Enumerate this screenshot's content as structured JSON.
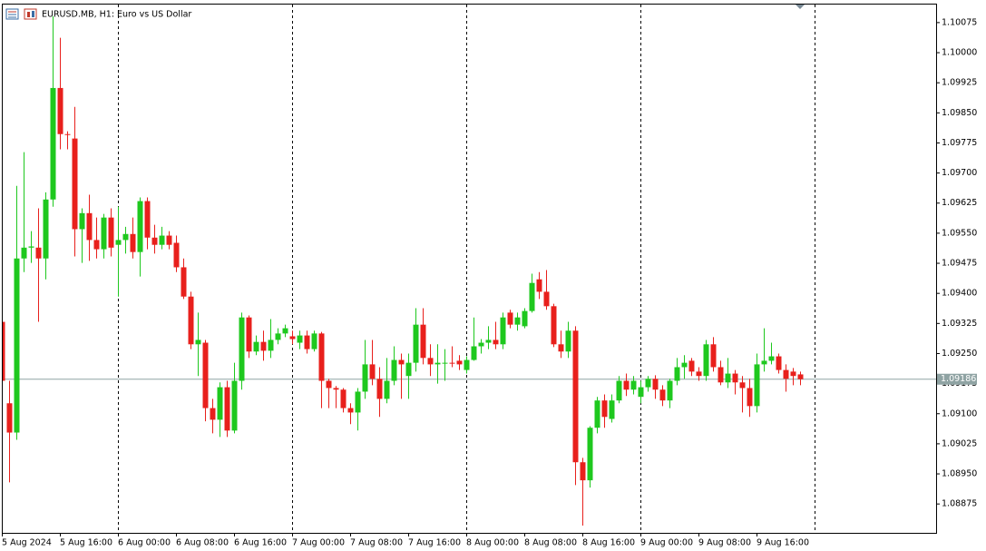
{
  "chart_data": {
    "type": "candlestick",
    "title": "EURUSD.MB, H1: Euro vs US Dollar",
    "categories": [
      "5 Aug 2024",
      null,
      null,
      null,
      null,
      null,
      null,
      null,
      "5 Aug 16:00",
      null,
      null,
      null,
      null,
      null,
      null,
      null,
      "6 Aug 00:00",
      null,
      null,
      null,
      null,
      null,
      null,
      null,
      "6 Aug 08:00",
      null,
      null,
      null,
      null,
      null,
      null,
      null,
      "6 Aug 16:00",
      null,
      null,
      null,
      null,
      null,
      null,
      null,
      "7 Aug 00:00",
      null,
      null,
      null,
      null,
      null,
      null,
      null,
      "7 Aug 08:00",
      null,
      null,
      null,
      null,
      null,
      null,
      null,
      "7 Aug 16:00",
      null,
      null,
      null,
      null,
      null,
      null,
      null,
      "8 Aug 00:00",
      null,
      null,
      null,
      null,
      null,
      null,
      null,
      "8 Aug 08:00",
      null,
      null,
      null,
      null,
      null,
      null,
      null,
      "8 Aug 16:00",
      null,
      null,
      null,
      null,
      null,
      null,
      null,
      "9 Aug 00:00",
      null,
      null,
      null,
      null,
      null,
      null,
      null,
      "9 Aug 08:00",
      null,
      null,
      null,
      null,
      null,
      null,
      null,
      "9 Aug 16:00",
      null,
      null,
      null,
      null,
      null,
      null
    ],
    "open": [
      1.09329,
      1.09126,
      1.09053,
      1.09487,
      1.09514,
      1.09514,
      1.09487,
      1.09634,
      1.09912,
      1.09797,
      1.09786,
      1.0956,
      1.096,
      1.09533,
      1.0951,
      1.09589,
      1.09521,
      1.09533,
      1.09548,
      1.09503,
      1.0963,
      1.09539,
      1.09521,
      1.09544,
      1.09526,
      1.09465,
      1.09392,
      1.09273,
      1.09277,
      1.09114,
      1.09085,
      1.09166,
      1.09058,
      1.09182,
      1.0934,
      1.09255,
      1.09279,
      1.09257,
      1.09284,
      1.093,
      1.09293,
      1.09277,
      1.09295,
      1.09261,
      1.093,
      1.09182,
      1.09164,
      1.0916,
      1.09114,
      1.09103,
      1.09155,
      1.09223,
      1.09187,
      1.09137,
      1.09182,
      1.09234,
      1.09194,
      1.09227,
      1.09322,
      1.09239,
      1.09223,
      1.09225,
      1.09227,
      1.09232,
      1.09209,
      1.09234,
      1.09268,
      1.09277,
      1.09284,
      1.09273,
      1.09352,
      1.09322,
      1.09318,
      1.09356,
      1.09435,
      1.09404,
      1.09368,
      1.09273,
      1.09255,
      1.09307,
      1.08979,
      1.08934,
      1.09065,
      1.09133,
      1.09087,
      1.09133,
      1.09182,
      1.0916,
      1.09142,
      1.09166,
      1.09187,
      1.0916,
      1.09133,
      1.09182,
      1.09216,
      1.09232,
      1.09205,
      1.09194,
      1.09273,
      1.09216,
      1.09178,
      1.092,
      1.09178,
      1.09164,
      1.09119,
      1.09223,
      1.09232,
      1.09243,
      1.09209,
      1.09205,
      1.09198
    ],
    "high": [
      1.0934,
      1.09182,
      1.09668,
      1.09752,
      1.09555,
      1.09612,
      1.09652,
      1.10091,
      1.10037,
      1.09804,
      1.09865,
      1.09612,
      1.09646,
      1.09589,
      1.09598,
      1.09612,
      1.09616,
      1.09566,
      1.09589,
      1.09639,
      1.09639,
      1.09571,
      1.09566,
      1.09555,
      1.09544,
      1.09487,
      1.09404,
      1.09352,
      1.09284,
      1.09137,
      1.09178,
      1.09182,
      1.09227,
      1.09352,
      1.09345,
      1.09295,
      1.09307,
      1.09336,
      1.09313,
      1.09322,
      1.09307,
      1.09307,
      1.09307,
      1.09307,
      1.09304,
      1.09187,
      1.09169,
      1.09164,
      1.09126,
      1.09164,
      1.09284,
      1.09284,
      1.09216,
      1.09239,
      1.09268,
      1.0925,
      1.0925,
      1.09363,
      1.09363,
      1.09273,
      1.09273,
      1.09261,
      1.09268,
      1.09246,
      1.09243,
      1.0934,
      1.09286,
      1.09318,
      1.09329,
      1.09352,
      1.09359,
      1.09352,
      1.09363,
      1.09449,
      1.09453,
      1.09458,
      1.09374,
      1.09307,
      1.09329,
      1.09318,
      1.0899,
      1.09069,
      1.09142,
      1.09148,
      1.09148,
      1.09194,
      1.092,
      1.09194,
      1.09182,
      1.09194,
      1.09196,
      1.09171,
      1.09187,
      1.09239,
      1.09246,
      1.09239,
      1.09216,
      1.09284,
      1.09291,
      1.09232,
      1.09239,
      1.09209,
      1.09194,
      1.09187,
      1.0925,
      1.09313,
      1.09277,
      1.0925,
      1.09223,
      1.09214,
      1.09205
    ],
    "low": [
      1.09126,
      1.08929,
      1.09035,
      1.09453,
      1.09476,
      1.09329,
      1.09435,
      1.09616,
      1.09759,
      1.09759,
      1.09492,
      1.09476,
      1.09481,
      1.09487,
      1.09487,
      1.09492,
      1.09392,
      1.09499,
      1.09487,
      1.09442,
      1.0951,
      1.09499,
      1.0951,
      1.0951,
      1.09453,
      1.09386,
      1.09261,
      1.09194,
      1.09081,
      1.09051,
      1.09042,
      1.09042,
      1.09051,
      1.0916,
      1.09239,
      1.09246,
      1.09232,
      1.09239,
      1.09273,
      1.09291,
      1.09273,
      1.09261,
      1.0925,
      1.09255,
      1.09114,
      1.09114,
      1.09114,
      1.09103,
      1.09074,
      1.09058,
      1.09137,
      1.09171,
      1.09092,
      1.09126,
      1.09171,
      1.09137,
      1.09137,
      1.09205,
      1.09223,
      1.09194,
      1.09175,
      1.09182,
      1.09216,
      1.09209,
      1.092,
      1.09232,
      1.0925,
      1.09261,
      1.09261,
      1.09261,
      1.09313,
      1.09307,
      1.09313,
      1.09352,
      1.09386,
      1.09359,
      1.09266,
      1.09239,
      1.09239,
      1.08922,
      1.08821,
      1.08916,
      1.09051,
      1.09065,
      1.09078,
      1.09126,
      1.09144,
      1.09148,
      1.09126,
      1.09155,
      1.09137,
      1.09119,
      1.09114,
      1.09171,
      1.09187,
      1.09194,
      1.09182,
      1.09182,
      1.09205,
      1.09171,
      1.09164,
      1.09148,
      1.09103,
      1.09092,
      1.09103,
      1.09205,
      1.09223,
      1.092,
      1.09155,
      1.09171,
      1.09171
    ],
    "close": [
      1.09182,
      1.09053,
      1.09487,
      1.09514,
      1.09517,
      1.09487,
      1.09634,
      1.09912,
      1.09797,
      1.09795,
      1.0956,
      1.096,
      1.09533,
      1.0951,
      1.09589,
      1.09514,
      1.09533,
      1.09548,
      1.09503,
      1.0963,
      1.09539,
      1.09521,
      1.09544,
      1.09521,
      1.09465,
      1.09392,
      1.09273,
      1.09284,
      1.09114,
      1.09085,
      1.09166,
      1.09058,
      1.09182,
      1.0934,
      1.09255,
      1.09279,
      1.09257,
      1.09284,
      1.093,
      1.09313,
      1.09286,
      1.09295,
      1.09261,
      1.093,
      1.09182,
      1.09164,
      1.0916,
      1.09114,
      1.09103,
      1.09155,
      1.09223,
      1.09187,
      1.09137,
      1.09182,
      1.09234,
      1.09223,
      1.09227,
      1.09322,
      1.09239,
      1.09223,
      1.09227,
      1.09227,
      1.09225,
      1.09223,
      1.09234,
      1.09268,
      1.09277,
      1.09284,
      1.09273,
      1.0934,
      1.09322,
      1.0934,
      1.09356,
      1.09426,
      1.09404,
      1.09368,
      1.09273,
      1.09255,
      1.09307,
      1.08979,
      1.08934,
      1.09065,
      1.09133,
      1.09092,
      1.09133,
      1.09182,
      1.0916,
      1.09182,
      1.09166,
      1.09187,
      1.0916,
      1.09133,
      1.09182,
      1.09216,
      1.09227,
      1.09205,
      1.09194,
      1.09273,
      1.09216,
      1.09178,
      1.092,
      1.09178,
      1.09164,
      1.09119,
      1.09223,
      1.09232,
      1.09243,
      1.09209,
      1.09187,
      1.09194,
      1.09186
    ],
    "up_color": "#1ec81e",
    "down_color": "#e8201c",
    "ylim": [
      1.08803,
      1.1012
    ],
    "yticks": [
      1.10075,
      {
        "value": 1.1,
        "label": "1.10000"
      },
      1.09925,
      {
        "value": 1.0985,
        "label": "1.09850"
      },
      1.09775,
      {
        "value": 1.097,
        "label": "1.09700"
      },
      1.09625,
      {
        "value": 1.0955,
        "label": "1.09550"
      },
      1.09475,
      {
        "value": 1.094,
        "label": "1.09400"
      },
      1.09325,
      {
        "value": 1.0925,
        "label": "1.09250"
      },
      1.09175,
      {
        "value": 1.091,
        "label": "1.09100"
      },
      1.09025,
      {
        "value": 1.0895,
        "label": "1.08950"
      },
      1.08875
    ],
    "current_price": 1.09186,
    "grid": false
  }
}
